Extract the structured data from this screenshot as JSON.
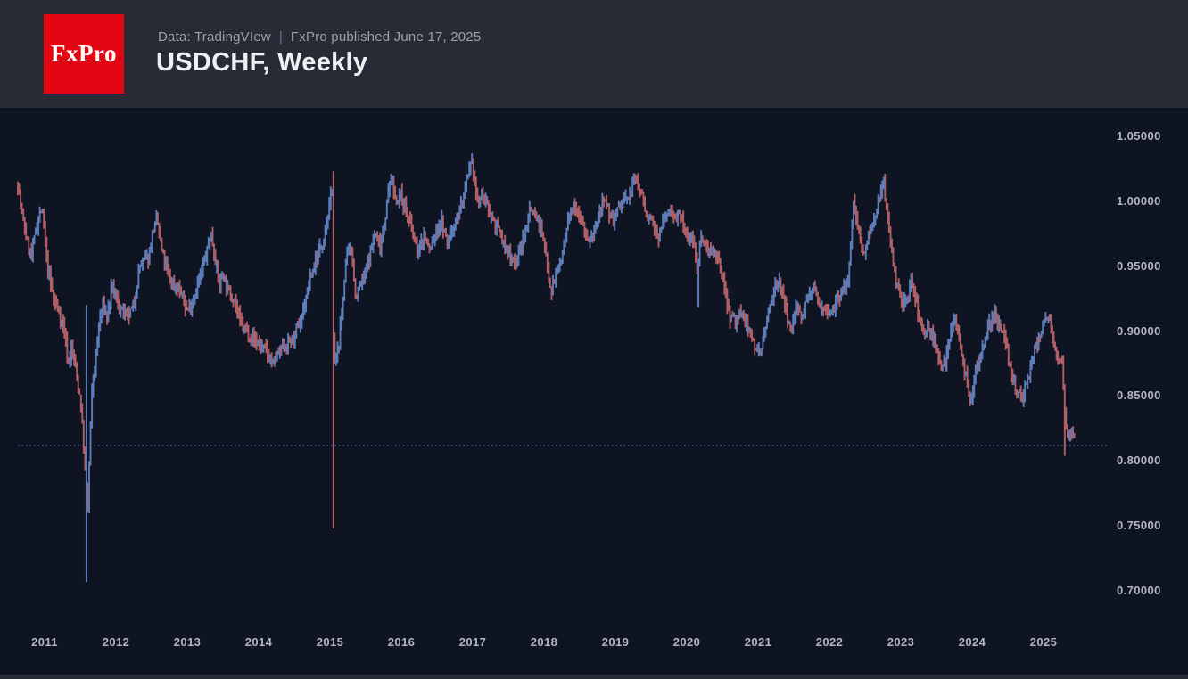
{
  "header": {
    "logo_text": "FxPro",
    "source": "Data: TradingVIew",
    "divider": "|",
    "published": "FxPro published June 17, 2025",
    "title": "USDCHF, Weekly"
  },
  "theme": {
    "header_background": "#272b36",
    "chart_background": "#0e1421",
    "logo_red": "#e30613",
    "title_color": "#eef0f3",
    "subtitle_color": "#9aa0aa",
    "axis_text_color": "#b3b7bf"
  },
  "chart_data": {
    "type": "candlestick",
    "symbol": "USDCHF",
    "timeframe": "Weekly",
    "title": "USDCHF, Weekly",
    "grid": "off",
    "legend": "none",
    "colors": {
      "up": "#5d7cba",
      "down": "#b15f66",
      "price_line": "#4c608a"
    },
    "y_axis": {
      "side": "right",
      "ticks": [
        "1.05000",
        "1.00000",
        "0.95000",
        "0.90000",
        "0.85000",
        "0.80000",
        "0.75000",
        "0.70000"
      ],
      "visible_range": [
        0.7,
        1.05
      ]
    },
    "x_axis": {
      "ticks": [
        "2011",
        "2012",
        "2013",
        "2014",
        "2015",
        "2016",
        "2017",
        "2018",
        "2019",
        "2020",
        "2021",
        "2022",
        "2023",
        "2024",
        "2025"
      ]
    },
    "current_price_line": {
      "value": 0.812,
      "style": "dotted"
    },
    "anchors": [
      [
        2010.6,
        1.026
      ],
      [
        2010.68,
        0.99
      ],
      [
        2010.76,
        0.968
      ],
      [
        2010.82,
        0.958
      ],
      [
        2010.88,
        0.98
      ],
      [
        2010.96,
        0.995
      ],
      [
        2011.04,
        0.95
      ],
      [
        2011.12,
        0.925
      ],
      [
        2011.2,
        0.915
      ],
      [
        2011.28,
        0.9
      ],
      [
        2011.33,
        0.875
      ],
      [
        2011.38,
        0.888
      ],
      [
        2011.45,
        0.865
      ],
      [
        2011.5,
        0.848
      ],
      [
        2011.55,
        0.81
      ],
      [
        2011.58,
        0.78
      ],
      [
        2011.61,
        0.76
      ],
      [
        2011.63,
        0.81
      ],
      [
        2011.67,
        0.86
      ],
      [
        2011.72,
        0.88
      ],
      [
        2011.76,
        0.905
      ],
      [
        2011.82,
        0.92
      ],
      [
        2011.88,
        0.91
      ],
      [
        2011.94,
        0.935
      ],
      [
        2012.0,
        0.925
      ],
      [
        2012.08,
        0.915
      ],
      [
        2012.16,
        0.91
      ],
      [
        2012.25,
        0.92
      ],
      [
        2012.33,
        0.95
      ],
      [
        2012.46,
        0.958
      ],
      [
        2012.52,
        0.978
      ],
      [
        2012.58,
        0.985
      ],
      [
        2012.64,
        0.962
      ],
      [
        2012.75,
        0.94
      ],
      [
        2012.83,
        0.935
      ],
      [
        2012.91,
        0.93
      ],
      [
        2013.0,
        0.915
      ],
      [
        2013.08,
        0.925
      ],
      [
        2013.17,
        0.94
      ],
      [
        2013.25,
        0.955
      ],
      [
        2013.33,
        0.975
      ],
      [
        2013.38,
        0.96
      ],
      [
        2013.45,
        0.935
      ],
      [
        2013.5,
        0.945
      ],
      [
        2013.58,
        0.93
      ],
      [
        2013.66,
        0.925
      ],
      [
        2013.75,
        0.905
      ],
      [
        2013.83,
        0.9
      ],
      [
        2013.91,
        0.895
      ],
      [
        2014.0,
        0.89
      ],
      [
        2014.1,
        0.885
      ],
      [
        2014.2,
        0.875
      ],
      [
        2014.3,
        0.885
      ],
      [
        2014.4,
        0.89
      ],
      [
        2014.5,
        0.895
      ],
      [
        2014.6,
        0.91
      ],
      [
        2014.7,
        0.935
      ],
      [
        2014.8,
        0.955
      ],
      [
        2014.9,
        0.97
      ],
      [
        2014.98,
        0.99
      ],
      [
        2015.04,
        1.015
      ],
      [
        2015.05,
        0.87
      ],
      [
        2015.1,
        0.88
      ],
      [
        2015.16,
        0.91
      ],
      [
        2015.22,
        0.955
      ],
      [
        2015.3,
        0.965
      ],
      [
        2015.36,
        0.925
      ],
      [
        2015.42,
        0.935
      ],
      [
        2015.5,
        0.945
      ],
      [
        2015.58,
        0.965
      ],
      [
        2015.64,
        0.975
      ],
      [
        2015.7,
        0.965
      ],
      [
        2015.78,
        0.99
      ],
      [
        2015.85,
        1.02
      ],
      [
        2015.92,
        1.0
      ],
      [
        2016.0,
        1.005
      ],
      [
        2016.08,
        0.99
      ],
      [
        2016.16,
        0.975
      ],
      [
        2016.24,
        0.96
      ],
      [
        2016.32,
        0.975
      ],
      [
        2016.4,
        0.962
      ],
      [
        2016.48,
        0.975
      ],
      [
        2016.56,
        0.985
      ],
      [
        2016.64,
        0.968
      ],
      [
        2016.72,
        0.98
      ],
      [
        2016.8,
        0.99
      ],
      [
        2016.88,
        1.005
      ],
      [
        2016.96,
        1.025
      ],
      [
        2017.0,
        1.028
      ],
      [
        2017.06,
        1.0
      ],
      [
        2017.14,
        1.005
      ],
      [
        2017.22,
        0.995
      ],
      [
        2017.3,
        0.985
      ],
      [
        2017.38,
        0.975
      ],
      [
        2017.46,
        0.963
      ],
      [
        2017.54,
        0.958
      ],
      [
        2017.6,
        0.952
      ],
      [
        2017.66,
        0.963
      ],
      [
        2017.72,
        0.972
      ],
      [
        2017.8,
        0.995
      ],
      [
        2017.88,
        0.99
      ],
      [
        2017.96,
        0.978
      ],
      [
        2018.04,
        0.955
      ],
      [
        2018.1,
        0.93
      ],
      [
        2018.18,
        0.947
      ],
      [
        2018.26,
        0.958
      ],
      [
        2018.34,
        0.985
      ],
      [
        2018.42,
        1.0
      ],
      [
        2018.5,
        0.99
      ],
      [
        2018.58,
        0.975
      ],
      [
        2018.66,
        0.968
      ],
      [
        2018.74,
        0.982
      ],
      [
        2018.82,
        0.998
      ],
      [
        2018.9,
        0.993
      ],
      [
        2018.96,
        0.985
      ],
      [
        2019.04,
        0.995
      ],
      [
        2019.12,
        1.0
      ],
      [
        2019.2,
        1.005
      ],
      [
        2019.28,
        1.018
      ],
      [
        2019.36,
        1.008
      ],
      [
        2019.44,
        0.99
      ],
      [
        2019.52,
        0.982
      ],
      [
        2019.6,
        0.972
      ],
      [
        2019.68,
        0.985
      ],
      [
        2019.76,
        0.993
      ],
      [
        2019.84,
        0.99
      ],
      [
        2019.92,
        0.988
      ],
      [
        2020.0,
        0.97
      ],
      [
        2020.08,
        0.975
      ],
      [
        2020.15,
        0.945
      ],
      [
        2020.2,
        0.975
      ],
      [
        2020.28,
        0.965
      ],
      [
        2020.36,
        0.962
      ],
      [
        2020.44,
        0.952
      ],
      [
        2020.52,
        0.94
      ],
      [
        2020.6,
        0.912
      ],
      [
        2020.68,
        0.908
      ],
      [
        2020.76,
        0.913
      ],
      [
        2020.84,
        0.905
      ],
      [
        2020.92,
        0.892
      ],
      [
        2021.0,
        0.885
      ],
      [
        2021.08,
        0.892
      ],
      [
        2021.16,
        0.92
      ],
      [
        2021.24,
        0.935
      ],
      [
        2021.3,
        0.942
      ],
      [
        2021.38,
        0.915
      ],
      [
        2021.46,
        0.9
      ],
      [
        2021.54,
        0.92
      ],
      [
        2021.62,
        0.912
      ],
      [
        2021.7,
        0.925
      ],
      [
        2021.78,
        0.932
      ],
      [
        2021.86,
        0.922
      ],
      [
        2021.94,
        0.918
      ],
      [
        2022.02,
        0.915
      ],
      [
        2022.1,
        0.925
      ],
      [
        2022.18,
        0.93
      ],
      [
        2022.26,
        0.94
      ],
      [
        2022.34,
        1.0
      ],
      [
        2022.42,
        0.975
      ],
      [
        2022.46,
        0.958
      ],
      [
        2022.54,
        0.972
      ],
      [
        2022.62,
        0.985
      ],
      [
        2022.7,
        1.005
      ],
      [
        2022.76,
        1.012
      ],
      [
        2022.82,
        0.985
      ],
      [
        2022.88,
        0.955
      ],
      [
        2022.94,
        0.935
      ],
      [
        2023.02,
        0.92
      ],
      [
        2023.1,
        0.928
      ],
      [
        2023.16,
        0.938
      ],
      [
        2023.24,
        0.915
      ],
      [
        2023.32,
        0.898
      ],
      [
        2023.4,
        0.902
      ],
      [
        2023.48,
        0.892
      ],
      [
        2023.55,
        0.87
      ],
      [
        2023.62,
        0.878
      ],
      [
        2023.7,
        0.898
      ],
      [
        2023.76,
        0.912
      ],
      [
        2023.84,
        0.888
      ],
      [
        2023.92,
        0.862
      ],
      [
        2023.98,
        0.845
      ],
      [
        2024.06,
        0.872
      ],
      [
        2024.14,
        0.885
      ],
      [
        2024.22,
        0.902
      ],
      [
        2024.3,
        0.915
      ],
      [
        2024.38,
        0.905
      ],
      [
        2024.46,
        0.892
      ],
      [
        2024.54,
        0.87
      ],
      [
        2024.62,
        0.852
      ],
      [
        2024.7,
        0.848
      ],
      [
        2024.78,
        0.862
      ],
      [
        2024.86,
        0.882
      ],
      [
        2024.94,
        0.895
      ],
      [
        2025.0,
        0.908
      ],
      [
        2025.06,
        0.912
      ],
      [
        2025.12,
        0.898
      ],
      [
        2025.2,
        0.882
      ],
      [
        2025.26,
        0.872
      ],
      [
        2025.31,
        0.825
      ],
      [
        2025.36,
        0.818
      ],
      [
        2025.4,
        0.824
      ],
      [
        2025.44,
        0.815
      ],
      [
        2025.46,
        0.812
      ]
    ],
    "events": [
      {
        "t": 2011.595,
        "low": 0.7066,
        "high": 0.92,
        "dir": "up"
      },
      {
        "t": 2015.048,
        "low": 0.748,
        "high": 1.023,
        "dir": "down"
      },
      {
        "t": 2020.165,
        "low": 0.918,
        "dir": "up"
      },
      {
        "t": 2025.297,
        "low": 0.8039,
        "dir": "down"
      }
    ]
  }
}
